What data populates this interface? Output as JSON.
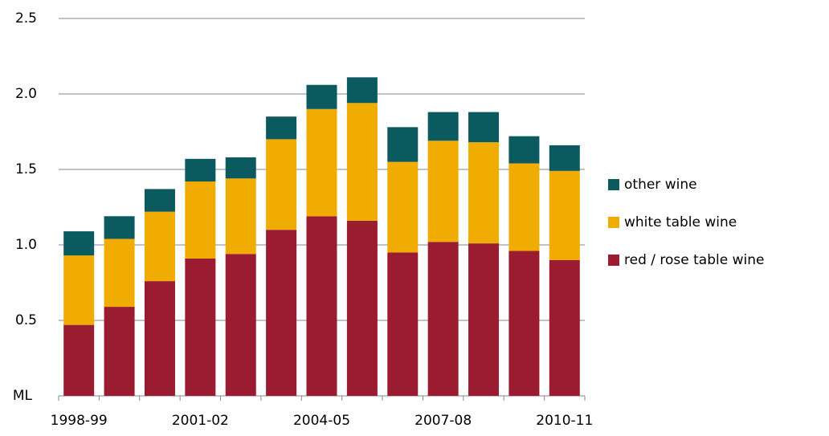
{
  "chart_data": {
    "type": "stacked_bar",
    "y_label": "ML",
    "categories": [
      "1998-99",
      null,
      null,
      "2001-02",
      null,
      null,
      "2004-05",
      null,
      null,
      "2007-08",
      null,
      null,
      "2010-11"
    ],
    "series": [
      {
        "name": "red / rose table wine",
        "color": "#9b1b30",
        "values": [
          0.47,
          0.59,
          0.76,
          0.91,
          0.94,
          1.1,
          1.19,
          1.16,
          0.95,
          1.02,
          1.01,
          0.96,
          0.9
        ]
      },
      {
        "name": "white table wine",
        "color": "#f0ac00",
        "values": [
          0.46,
          0.45,
          0.46,
          0.51,
          0.5,
          0.6,
          0.71,
          0.78,
          0.6,
          0.67,
          0.67,
          0.58,
          0.59
        ]
      },
      {
        "name": "other wine",
        "color": "#0b5a5f",
        "values": [
          0.16,
          0.15,
          0.15,
          0.15,
          0.14,
          0.15,
          0.16,
          0.17,
          0.23,
          0.19,
          0.2,
          0.18,
          0.17
        ]
      }
    ],
    "ylim": [
      0,
      2.5
    ],
    "yticks": [
      {
        "value": 0.5,
        "label": "0.5"
      },
      {
        "value": 1,
        "label": "1.0"
      },
      {
        "value": 1.5,
        "label": "1.5"
      },
      {
        "value": 2,
        "label": "2.0"
      },
      {
        "value": 2.5,
        "label": "2.5"
      }
    ],
    "grid": true,
    "legend": "right"
  }
}
